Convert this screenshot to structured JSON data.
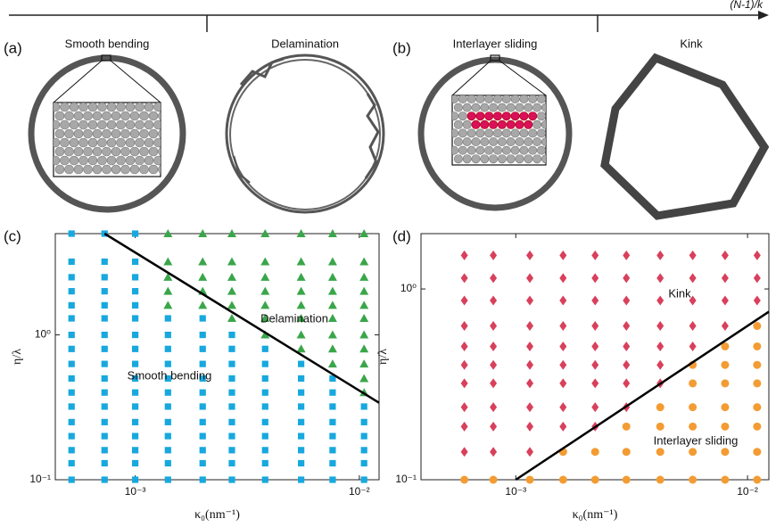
{
  "figure": {
    "axis_label": "(N-1)/k",
    "panels": [
      {
        "label": "(a)",
        "captions": [
          "Smooth bending",
          "Delamination"
        ]
      },
      {
        "label": "(b)",
        "captions": [
          "Interlayer sliding",
          "Kink"
        ]
      }
    ]
  },
  "chart_data": [
    {
      "type": "scatter",
      "panel_label": "(c)",
      "x_label": "κ₀(nm⁻¹)",
      "y_label": "η/λ",
      "log_x": true,
      "log_y": true,
      "xlim": [
        0.00044,
        0.01225
      ],
      "ylim": [
        0.1,
        5
      ],
      "xticks": [
        {
          "value": 0.001,
          "label": "10⁻³"
        },
        {
          "value": 0.01,
          "label": "10⁻²"
        }
      ],
      "yticks": [
        {
          "value": 0.1,
          "label": "10⁻¹"
        },
        {
          "value": 1,
          "label": "10⁰"
        }
      ],
      "annotations": [
        "Delamination",
        "Smooth bending"
      ],
      "series": [
        {
          "marker": "square",
          "color": "#17a8de",
          "x": [
            0.00052,
            0.00052,
            0.00052,
            0.00052,
            0.00052,
            0.00052,
            0.00052,
            0.00052,
            0.00052,
            0.00052,
            0.00052,
            0.00052,
            0.00052,
            0.00052,
            0.00052,
            0.00052,
            0.00052,
            0.00073,
            0.00073,
            0.00073,
            0.00073,
            0.00073,
            0.00073,
            0.00073,
            0.00073,
            0.00073,
            0.00073,
            0.00073,
            0.00073,
            0.00073,
            0.00073,
            0.00073,
            0.00073,
            0.00073,
            0.001,
            0.001,
            0.001,
            0.001,
            0.001,
            0.001,
            0.001,
            0.001,
            0.001,
            0.001,
            0.001,
            0.001,
            0.001,
            0.001,
            0.001,
            0.001,
            0.001,
            0.0014,
            0.0014,
            0.0014,
            0.0014,
            0.0014,
            0.0014,
            0.0014,
            0.0014,
            0.0014,
            0.0014,
            0.0014,
            0.0014,
            0.002,
            0.002,
            0.002,
            0.002,
            0.002,
            0.002,
            0.002,
            0.002,
            0.002,
            0.002,
            0.002,
            0.002,
            0.0027,
            0.0027,
            0.0027,
            0.0027,
            0.0027,
            0.0027,
            0.0027,
            0.0027,
            0.0027,
            0.0027,
            0.0027,
            0.0038,
            0.0038,
            0.0038,
            0.0038,
            0.0038,
            0.0038,
            0.0038,
            0.0038,
            0.0038,
            0.0038,
            0.0055,
            0.0055,
            0.0055,
            0.0055,
            0.0055,
            0.0055,
            0.0055,
            0.0055,
            0.0055,
            0.0076,
            0.0076,
            0.0076,
            0.0076,
            0.0076,
            0.0076,
            0.0076,
            0.0076,
            0.0105,
            0.0105,
            0.0105,
            0.0105,
            0.0105,
            0.0105
          ],
          "values": [
            0.1,
            0.13,
            0.16,
            0.2,
            0.25,
            0.32,
            0.4,
            0.5,
            0.63,
            0.8,
            1,
            1.3,
            1.6,
            2,
            2.5,
            3.2,
            5,
            0.1,
            0.13,
            0.16,
            0.2,
            0.25,
            0.32,
            0.4,
            0.5,
            0.63,
            0.8,
            1,
            1.3,
            1.6,
            2,
            2.5,
            3.2,
            5,
            0.1,
            0.13,
            0.16,
            0.2,
            0.25,
            0.32,
            0.4,
            0.5,
            0.63,
            0.8,
            1,
            1.3,
            1.6,
            2,
            2.5,
            3.2,
            5,
            0.1,
            0.13,
            0.16,
            0.2,
            0.25,
            0.32,
            0.4,
            0.5,
            0.63,
            0.8,
            1,
            1.3,
            0.1,
            0.13,
            0.16,
            0.2,
            0.25,
            0.32,
            0.4,
            0.5,
            0.63,
            0.8,
            1,
            1.3,
            0.1,
            0.13,
            0.16,
            0.2,
            0.25,
            0.32,
            0.4,
            0.5,
            0.63,
            0.8,
            1,
            0.1,
            0.13,
            0.16,
            0.2,
            0.25,
            0.32,
            0.4,
            0.5,
            0.63,
            0.8,
            0.1,
            0.13,
            0.16,
            0.2,
            0.25,
            0.32,
            0.4,
            0.5,
            0.63,
            0.1,
            0.13,
            0.16,
            0.2,
            0.25,
            0.32,
            0.4,
            0.5,
            0.1,
            0.13,
            0.16,
            0.2,
            0.25,
            0.32
          ]
        },
        {
          "marker": "triangle",
          "color": "#3aa64a",
          "x": [
            0.0014,
            0.0014,
            0.0014,
            0.0014,
            0.0014,
            0.002,
            0.002,
            0.002,
            0.002,
            0.002,
            0.0027,
            0.0027,
            0.0027,
            0.0027,
            0.0027,
            0.0027,
            0.0038,
            0.0038,
            0.0038,
            0.0038,
            0.0038,
            0.0038,
            0.0038,
            0.0055,
            0.0055,
            0.0055,
            0.0055,
            0.0055,
            0.0055,
            0.0055,
            0.0055,
            0.0076,
            0.0076,
            0.0076,
            0.0076,
            0.0076,
            0.0076,
            0.0076,
            0.0076,
            0.0076,
            0.0105,
            0.0105,
            0.0105,
            0.0105,
            0.0105,
            0.0105,
            0.0105,
            0.0105,
            0.0105,
            0.0105,
            0.0105
          ],
          "values": [
            1.6,
            2,
            2.5,
            3.2,
            5,
            1.6,
            2,
            2.5,
            3.2,
            5,
            1.3,
            1.6,
            2,
            2.5,
            3.2,
            5,
            1,
            1.3,
            1.6,
            2,
            2.5,
            3.2,
            5,
            0.8,
            1,
            1.3,
            1.6,
            2,
            2.5,
            3.2,
            5,
            0.63,
            0.8,
            1,
            1.3,
            1.6,
            2,
            2.5,
            3.2,
            5,
            0.4,
            0.5,
            0.63,
            0.8,
            1,
            1.3,
            1.6,
            2,
            2.5,
            3.2,
            5
          ]
        }
      ],
      "lines": [
        {
          "color": "#000000",
          "x": [
            0.00073,
            0.01225
          ],
          "values": [
            5,
            0.34
          ]
        }
      ]
    },
    {
      "type": "scatter",
      "panel_label": "(d)",
      "x_label": "κ₀(nm⁻¹)",
      "y_label": "η/λ",
      "log_x": true,
      "log_y": true,
      "xlim": [
        0.00039,
        0.01236
      ],
      "ylim": [
        0.1,
        1.95
      ],
      "xticks": [
        {
          "value": 0.001,
          "label": "10⁻³"
        },
        {
          "value": 0.01,
          "label": "10⁻²"
        }
      ],
      "yticks": [
        {
          "value": 0.1,
          "label": "10⁻¹"
        },
        {
          "value": 1,
          "label": "10⁰"
        }
      ],
      "annotations": [
        "Kink",
        "Interlayer sliding"
      ],
      "series": [
        {
          "marker": "diamond",
          "color": "#d8405c",
          "x": [
            0.0006,
            0.0006,
            0.0006,
            0.0006,
            0.0006,
            0.0006,
            0.0006,
            0.0006,
            0.0006,
            0.0006,
            0.0008,
            0.0008,
            0.0008,
            0.0008,
            0.0008,
            0.0008,
            0.0008,
            0.0008,
            0.0008,
            0.0008,
            0.00115,
            0.00115,
            0.00115,
            0.00115,
            0.00115,
            0.00115,
            0.00115,
            0.00115,
            0.00115,
            0.00115,
            0.0016,
            0.0016,
            0.0016,
            0.0016,
            0.0016,
            0.0016,
            0.0016,
            0.0016,
            0.0016,
            0.0022,
            0.0022,
            0.0022,
            0.0022,
            0.0022,
            0.0022,
            0.0022,
            0.0022,
            0.0022,
            0.003,
            0.003,
            0.003,
            0.003,
            0.003,
            0.003,
            0.003,
            0.003,
            0.0042,
            0.0042,
            0.0042,
            0.0042,
            0.0042,
            0.0042,
            0.0042,
            0.0058,
            0.0058,
            0.0058,
            0.0058,
            0.0058,
            0.008,
            0.008,
            0.008,
            0.008,
            0.011,
            0.011,
            0.011
          ],
          "values": [
            0.14,
            0.19,
            0.24,
            0.32,
            0.4,
            0.5,
            0.64,
            0.87,
            1.14,
            1.5,
            0.14,
            0.19,
            0.24,
            0.32,
            0.4,
            0.5,
            0.64,
            0.87,
            1.14,
            1.5,
            0.14,
            0.19,
            0.24,
            0.32,
            0.4,
            0.5,
            0.64,
            0.87,
            1.14,
            1.5,
            0.19,
            0.24,
            0.32,
            0.4,
            0.5,
            0.64,
            0.87,
            1.14,
            1.5,
            0.19,
            0.24,
            0.32,
            0.4,
            0.5,
            0.64,
            0.87,
            1.14,
            1.5,
            0.24,
            0.32,
            0.4,
            0.5,
            0.64,
            0.87,
            1.14,
            1.5,
            0.32,
            0.4,
            0.5,
            0.64,
            0.87,
            1.14,
            1.5,
            0.5,
            0.64,
            0.87,
            1.14,
            1.5,
            0.64,
            0.87,
            1.14,
            1.5,
            0.87,
            1.14,
            1.5
          ]
        },
        {
          "marker": "circle",
          "color": "#f39c33",
          "x": [
            0.0006,
            0.0008,
            0.00115,
            0.0016,
            0.0016,
            0.0022,
            0.0022,
            0.003,
            0.003,
            0.003,
            0.0042,
            0.0042,
            0.0042,
            0.0042,
            0.0058,
            0.0058,
            0.0058,
            0.0058,
            0.0058,
            0.0058,
            0.008,
            0.008,
            0.008,
            0.008,
            0.008,
            0.008,
            0.008,
            0.011,
            0.011,
            0.011,
            0.011,
            0.011,
            0.011,
            0.011,
            0.011
          ],
          "values": [
            0.1,
            0.1,
            0.1,
            0.1,
            0.14,
            0.1,
            0.14,
            0.1,
            0.14,
            0.19,
            0.1,
            0.14,
            0.19,
            0.24,
            0.1,
            0.14,
            0.19,
            0.24,
            0.32,
            0.4,
            0.1,
            0.14,
            0.19,
            0.24,
            0.32,
            0.4,
            0.5,
            0.1,
            0.14,
            0.19,
            0.24,
            0.32,
            0.4,
            0.5,
            0.64
          ]
        }
      ],
      "lines": [
        {
          "color": "#000000",
          "x": [
            0.001,
            0.01236
          ],
          "values": [
            0.1,
            0.76
          ]
        }
      ]
    }
  ]
}
